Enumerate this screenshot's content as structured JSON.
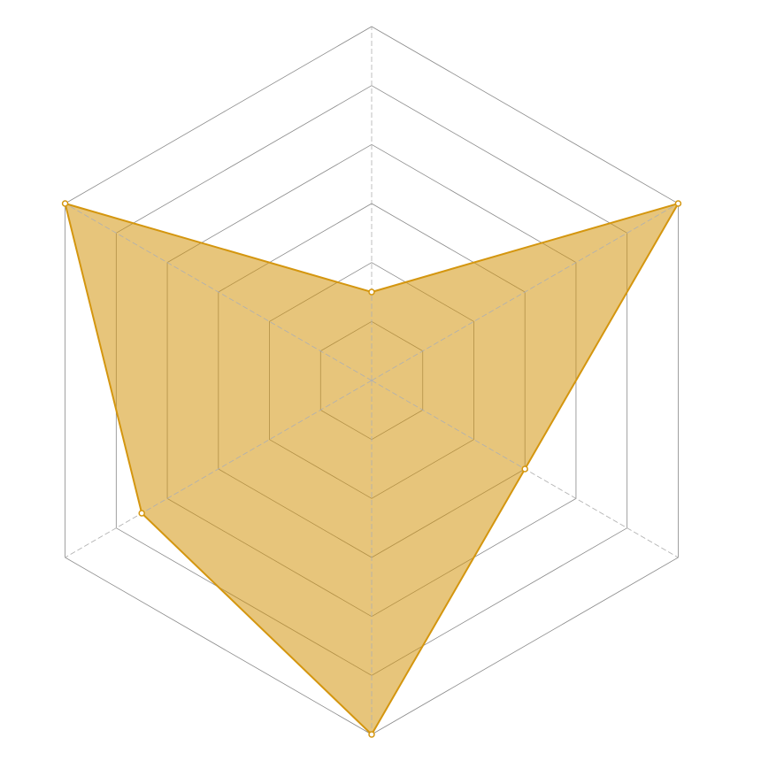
{
  "chart_data": {
    "type": "radar",
    "categories": [
      null,
      null,
      null,
      null,
      null,
      null
    ],
    "series": [
      {
        "color": "#d4960f",
        "values": [
          1.5,
          6,
          3,
          6,
          4.5,
          6
        ]
      }
    ],
    "rlim": [
      0,
      6
    ],
    "rticks": [
      1,
      2,
      3,
      4,
      5,
      6
    ],
    "grid": true
  }
}
